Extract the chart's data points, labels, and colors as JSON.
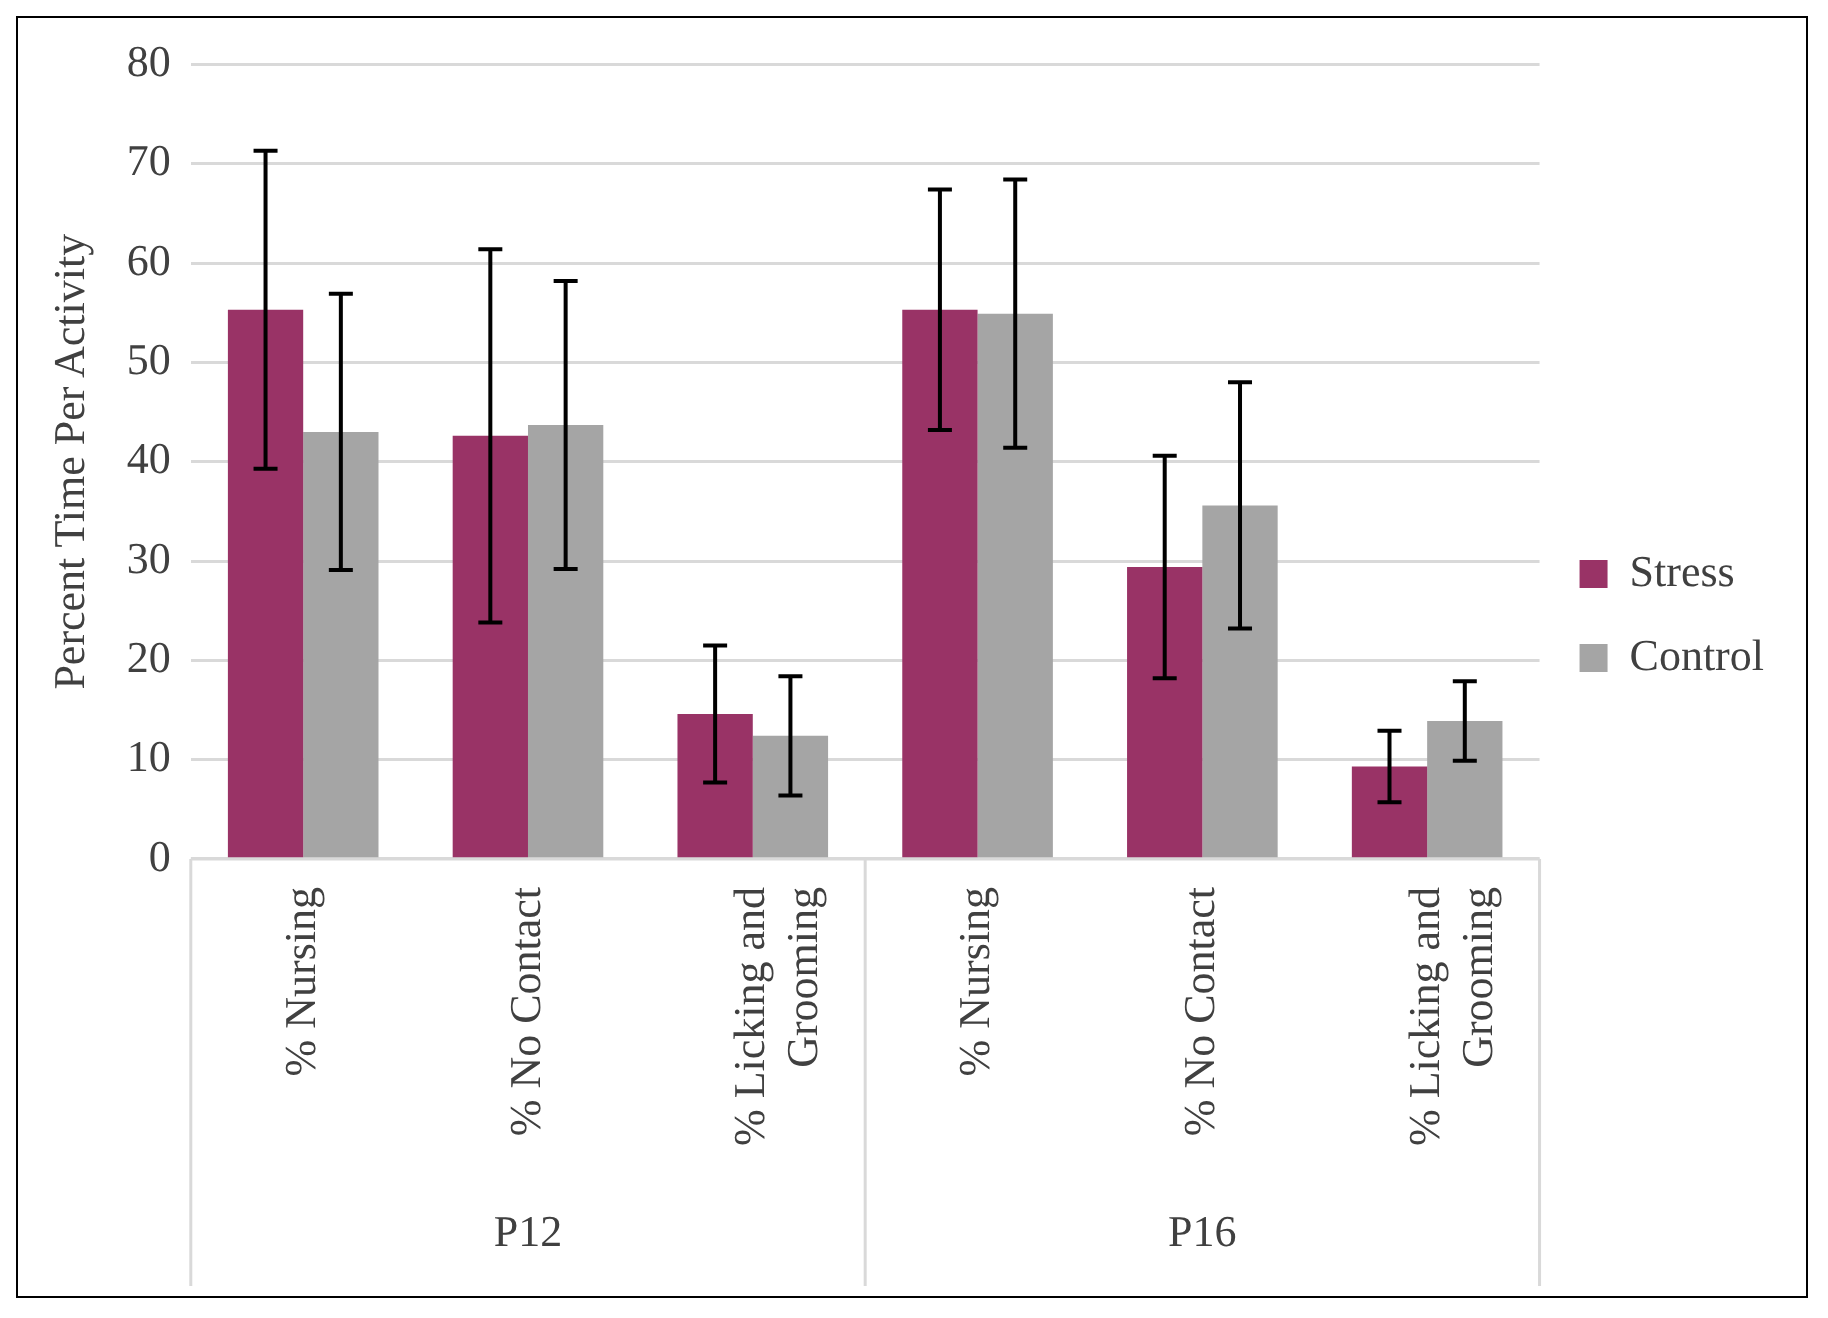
{
  "chart_data": {
    "type": "bar",
    "ylabel": "Percent Time Per Activity",
    "categories": [
      "% Nursing",
      "% No Contact",
      "% Licking and Grooming",
      "% Nursing",
      "% No Contact",
      "% Licking and Grooming"
    ],
    "series": [
      {
        "name": "Stress",
        "color": "#993366",
        "values": [
          55.3,
          42.6,
          14.6,
          55.3,
          29.4,
          9.3
        ],
        "errors": [
          16,
          18.8,
          6.9,
          12.1,
          11.2,
          3.6
        ]
      },
      {
        "name": "Control",
        "color": "#a5a5a5",
        "values": [
          43.0,
          43.7,
          12.4,
          54.9,
          35.6,
          13.9
        ],
        "errors": [
          13.9,
          14.5,
          6,
          13.5,
          12.4,
          4
        ]
      }
    ],
    "annotations": [
      "P12",
      "P16"
    ],
    "ylim": [
      0,
      80
    ],
    "yticks": [
      0,
      10,
      20,
      30,
      40,
      50,
      60,
      70,
      80
    ],
    "grid": "y",
    "legend": "right"
  }
}
